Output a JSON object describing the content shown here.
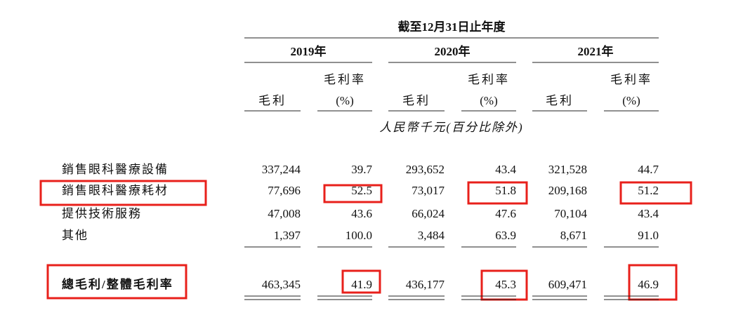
{
  "table": {
    "period": "截至12月31日止年度",
    "columns": [
      {
        "year": "2019年",
        "profit_label": "毛利",
        "margin_label": "毛利率",
        "margin_unit": "(%)"
      },
      {
        "year": "2020年",
        "profit_label": "毛利",
        "margin_label": "毛利率",
        "margin_unit": "(%)"
      },
      {
        "year": "2021年",
        "profit_label": "毛利",
        "margin_label": "毛利率",
        "margin_unit": "(%)"
      }
    ],
    "unit_note": "人民幣千元(百分比除外)",
    "rows": [
      {
        "label": "銷售眼科醫療設備",
        "cells": [
          "337,244",
          "39.7",
          "293,652",
          "43.4",
          "321,528",
          "44.7"
        ]
      },
      {
        "label": "銷售眼科醫療耗材",
        "cells": [
          "77,696",
          "52.5",
          "73,017",
          "51.8",
          "209,168",
          "51.2"
        ]
      },
      {
        "label": "提供技術服務",
        "cells": [
          "47,008",
          "43.6",
          "66,024",
          "47.6",
          "70,104",
          "43.4"
        ]
      },
      {
        "label": "其他",
        "cells": [
          "1,397",
          "100.0",
          "3,484",
          "63.9",
          "8,671",
          "91.0"
        ]
      }
    ],
    "total": {
      "label": "總毛利/整體毛利率",
      "cells": [
        "463,345",
        "41.9",
        "436,177",
        "45.3",
        "609,471",
        "46.9"
      ]
    }
  }
}
